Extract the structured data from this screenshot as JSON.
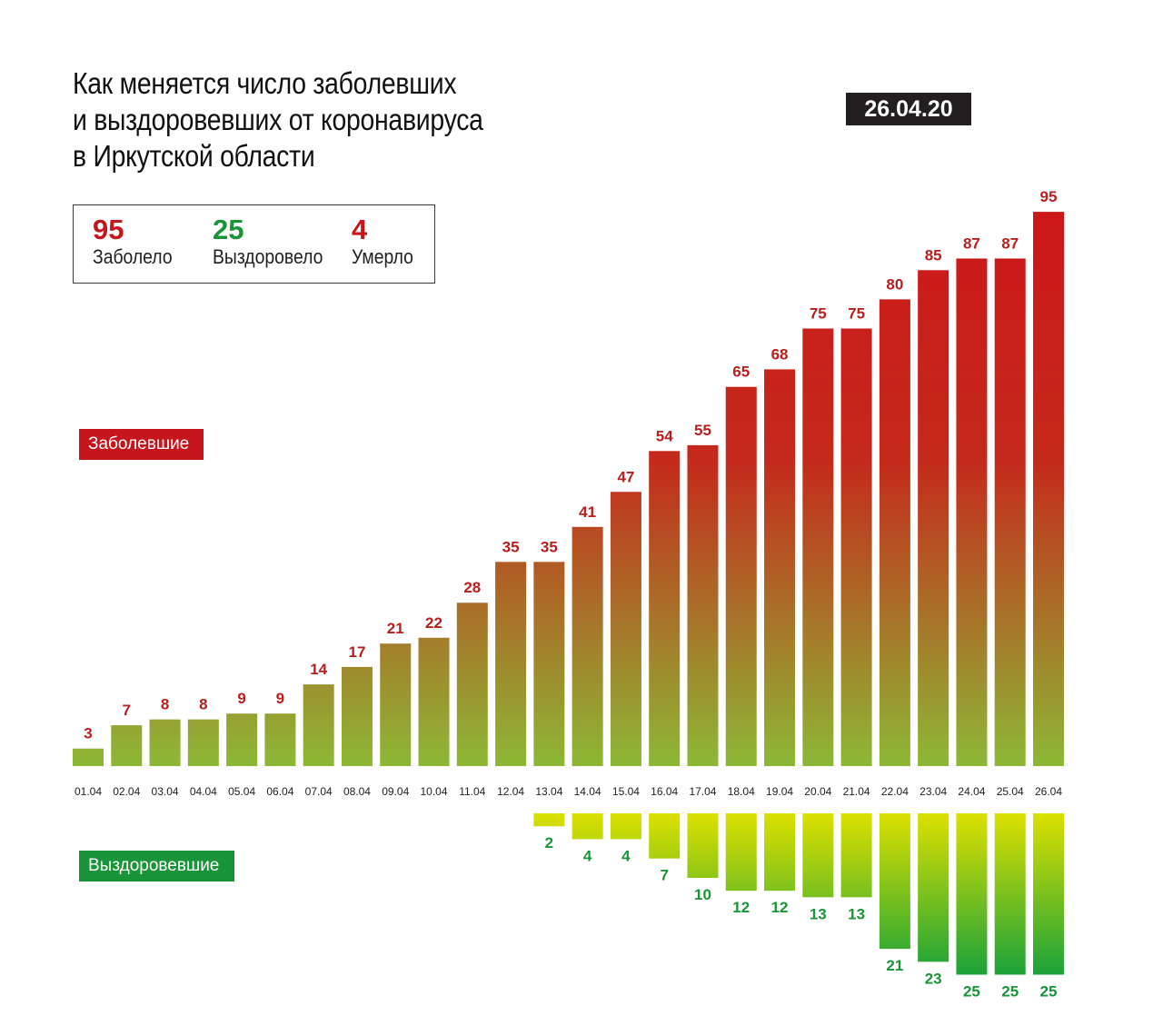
{
  "title_lines": [
    "Как меняется число заболевших",
    "и выздоровевших от коронавируса",
    "в Иркутской области"
  ],
  "date": "26.04.20",
  "summary": [
    {
      "value": "95",
      "label": "Заболело",
      "color": "#c4161c"
    },
    {
      "value": "25",
      "label": "Выздоровело",
      "color": "#1a9438"
    },
    {
      "value": "4",
      "label": "Умерло",
      "color": "#c4161c"
    }
  ],
  "colors": {
    "infected_top": "#cc1719",
    "infected_bottom": "#8db836",
    "recovered_top": "#dde000",
    "recovered_bottom": "#1ba23a",
    "infected_label": "#b81e1e",
    "recovered_label": "#1a9438",
    "tag_infected": "#c4161c",
    "tag_recovered": "#1a9438",
    "date_badge": "#231f20"
  },
  "chart_data": {
    "type": "bar",
    "categories": [
      "01.04",
      "02.04",
      "03.04",
      "04.04",
      "05.04",
      "06.04",
      "07.04",
      "08.04",
      "09.04",
      "10.04",
      "11.04",
      "12.04",
      "13.04",
      "14.04",
      "15.04",
      "16.04",
      "17.04",
      "18.04",
      "19.04",
      "20.04",
      "21.04",
      "22.04",
      "23.04",
      "24.04",
      "25.04",
      "26.04"
    ],
    "series": [
      {
        "name": "Заболевшие",
        "direction": "up",
        "values": [
          3,
          7,
          8,
          8,
          9,
          9,
          14,
          17,
          21,
          22,
          28,
          35,
          35,
          41,
          47,
          54,
          55,
          65,
          68,
          75,
          75,
          80,
          85,
          87,
          87,
          95
        ]
      },
      {
        "name": "Выздоровевшие",
        "direction": "down",
        "values": [
          null,
          null,
          null,
          null,
          null,
          null,
          null,
          null,
          null,
          null,
          null,
          null,
          2,
          4,
          4,
          7,
          10,
          12,
          12,
          13,
          13,
          21,
          23,
          25,
          25,
          25
        ]
      }
    ],
    "ylim": [
      0,
      95
    ],
    "grid": false,
    "legend": "left"
  }
}
